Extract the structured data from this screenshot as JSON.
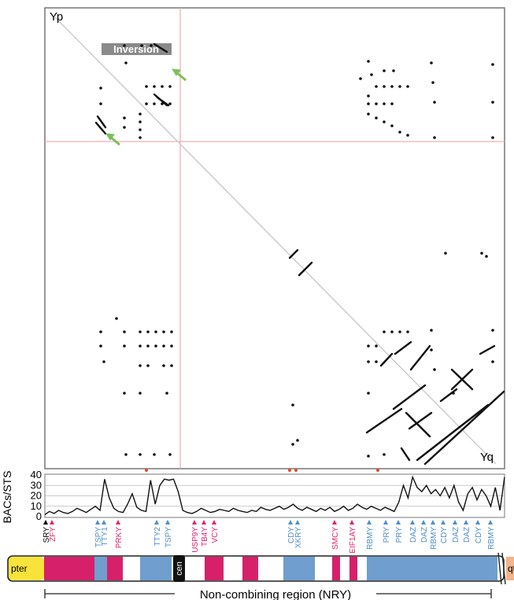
{
  "dotplot": {
    "corner_top_left": "Yp",
    "corner_bottom_right": "Yq",
    "inversion_label": "Inversion"
  },
  "chart_data": {
    "type": "line",
    "ylabel": "BACs/STS",
    "yticks": [
      0,
      10,
      20,
      30,
      40
    ],
    "ylim": [
      0,
      40
    ],
    "grid": true,
    "x": [
      0,
      0.5,
      1,
      1.5,
      2,
      2.5,
      3,
      3.5,
      4,
      4.5,
      5,
      5.5,
      6,
      6.5,
      7,
      7.5,
      8,
      8.5,
      9,
      9.5,
      10,
      10.5,
      11,
      11.5,
      12,
      12.5,
      13,
      13.5,
      14,
      14.5,
      15,
      15.5,
      16,
      16.5,
      17,
      17.5,
      18,
      18.5,
      19,
      19.5,
      20,
      20.5,
      21,
      21.5,
      22,
      22.5,
      23,
      23.5,
      24,
      24.5,
      25,
      25.5,
      26,
      26.5,
      27,
      27.5,
      28,
      28.5,
      29,
      29.5,
      30,
      30.5,
      31,
      31.5,
      32,
      32.5,
      33,
      33.5,
      34,
      34.5,
      35,
      35.5,
      36,
      36.5,
      37,
      37.5,
      38,
      38.5,
      39,
      39.5,
      40,
      40.5,
      41,
      41.5,
      42,
      42.5,
      43,
      43.5,
      44,
      44.5,
      45,
      45.5,
      46,
      46.5,
      47,
      47.5,
      48,
      48.5,
      49,
      49.5,
      50
    ],
    "values": [
      2,
      5,
      3,
      6,
      4,
      3,
      5,
      8,
      6,
      4,
      7,
      10,
      6,
      36,
      18,
      8,
      5,
      4,
      12,
      22,
      9,
      6,
      5,
      35,
      12,
      30,
      36,
      35,
      36,
      24,
      6,
      4,
      3,
      5,
      8,
      6,
      4,
      5,
      7,
      6,
      5,
      8,
      6,
      5,
      4,
      6,
      5,
      9,
      7,
      6,
      8,
      10,
      7,
      9,
      12,
      8,
      6,
      9,
      7,
      5,
      8,
      6,
      9,
      5,
      7,
      10,
      6,
      8,
      12,
      9,
      7,
      10,
      8,
      6,
      9,
      7,
      5,
      14,
      30,
      18,
      38,
      28,
      24,
      30,
      22,
      26,
      20,
      28,
      18,
      30,
      14,
      6,
      22,
      28,
      16,
      26,
      20,
      10,
      28,
      6,
      38
    ]
  },
  "genes_top": [
    {
      "name": "SRY",
      "color": "#000000"
    },
    {
      "name": "ZFY",
      "color": "#e0256e"
    },
    {
      "name": "TSPY",
      "color": "#4f8fca"
    },
    {
      "name": "TTY1",
      "color": "#4f8fca"
    },
    {
      "name": "PRKY",
      "color": "#e0256e"
    },
    {
      "name": "TTY2",
      "color": "#4f8fca"
    },
    {
      "name": "TSPY",
      "color": "#4f8fca"
    },
    {
      "name": "USP9Y",
      "color": "#e0256e"
    },
    {
      "name": "TB4Y",
      "color": "#e0256e"
    },
    {
      "name": "VCY",
      "color": "#e0256e"
    },
    {
      "name": "CDY",
      "color": "#4f8fca"
    },
    {
      "name": "XKRY",
      "color": "#4f8fca"
    },
    {
      "name": "SMCY",
      "color": "#e0256e"
    },
    {
      "name": "EIF1AY",
      "color": "#e0256e"
    },
    {
      "name": "RBMY",
      "color": "#4f8fca"
    },
    {
      "name": "PRY",
      "color": "#4f8fca"
    },
    {
      "name": "PRY",
      "color": "#4f8fca"
    },
    {
      "name": "DAZ",
      "color": "#4f8fca"
    },
    {
      "name": "DAZ",
      "color": "#4f8fca"
    },
    {
      "name": "RBMY",
      "color": "#4f8fca"
    },
    {
      "name": "CDY",
      "color": "#4f8fca"
    },
    {
      "name": "DAZ",
      "color": "#4f8fca"
    },
    {
      "name": "DAZ",
      "color": "#4f8fca"
    },
    {
      "name": "CDY",
      "color": "#4f8fca"
    },
    {
      "name": "RBMY",
      "color": "#4f8fca"
    }
  ],
  "chromosome": {
    "pter_label": "pter",
    "cen_label": "cen",
    "qter_label": "qter",
    "region_label": "Non-combining region (NRY)",
    "colors": {
      "yellow": "#f7e33a",
      "pink": "#d6216a",
      "blue": "#6f9ecf",
      "peach": "#f2b48a"
    }
  }
}
